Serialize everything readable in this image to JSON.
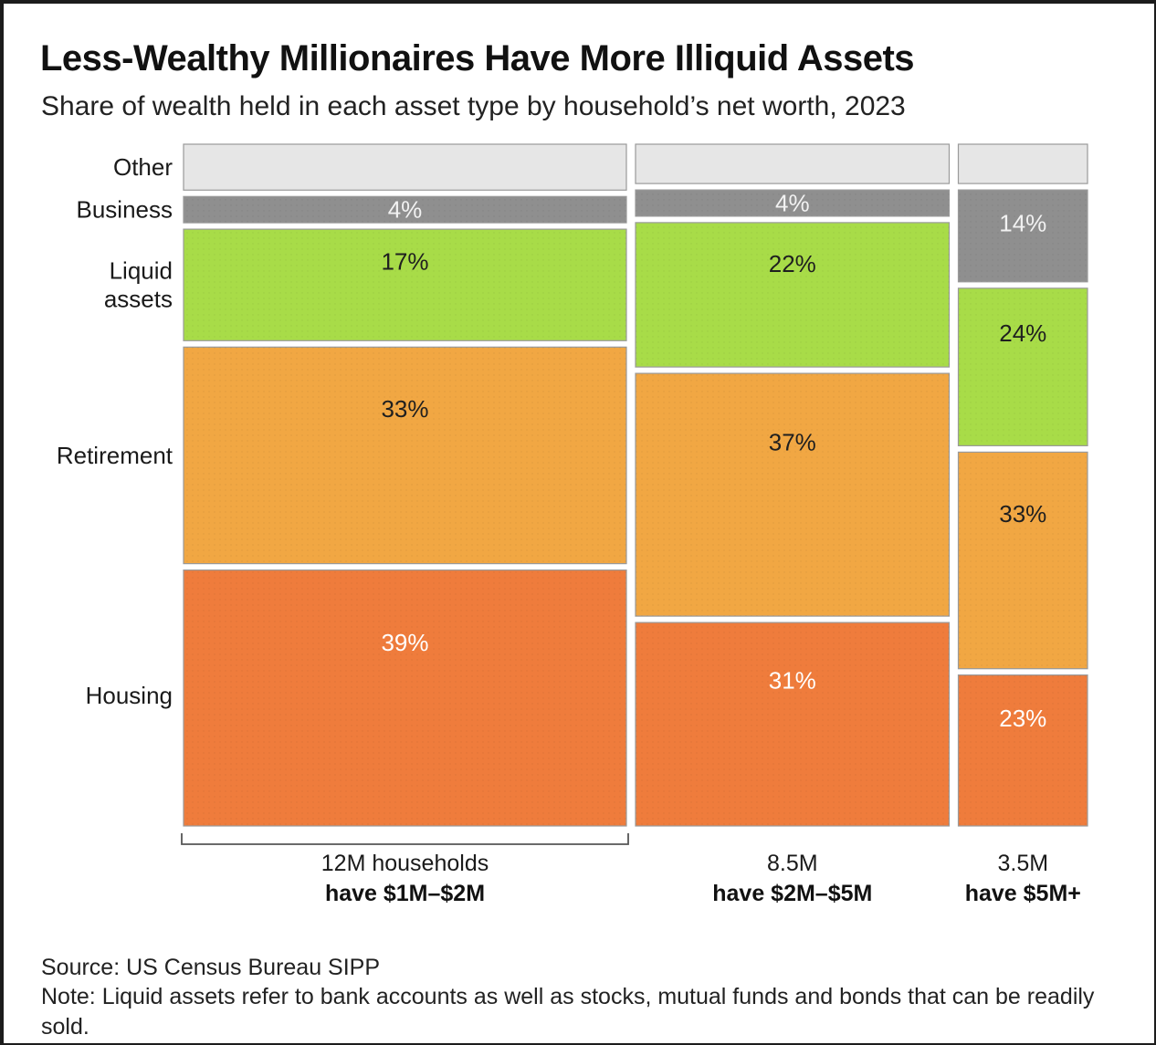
{
  "title": "Less-Wealthy Millionaires Have More Illiquid Assets",
  "subtitle": "Share of wealth held in each asset type by household’s net worth, 2023",
  "source": "Source: US Census Bureau SIPP",
  "note": "Note: Liquid assets refer to bank accounts as well as stocks, mutual funds and bonds that can be readily sold.",
  "chart_data": {
    "type": "mosaic",
    "title": "Less-Wealthy Millionaires Have More Illiquid Assets",
    "subtitle": "Share of wealth held in each asset type by household’s net worth, 2023",
    "categories_order_top_to_bottom": [
      "Other",
      "Business",
      "Liquid assets",
      "Retirement",
      "Housing"
    ],
    "row_labels": [
      {
        "key": "other",
        "lines": [
          "Other"
        ]
      },
      {
        "key": "business",
        "lines": [
          "Business"
        ]
      },
      {
        "key": "liquid",
        "lines": [
          "Liquid",
          "assets"
        ]
      },
      {
        "key": "retirement",
        "lines": [
          "Retirement"
        ]
      },
      {
        "key": "housing",
        "lines": [
          "Housing"
        ]
      }
    ],
    "colors": {
      "other": "#e6e6e6",
      "business": "#8f8f8f",
      "liquid": "#a8dc48",
      "retirement": "#f1a743",
      "housing": "#ef7c3c"
    },
    "label_colors": {
      "other": "#333333",
      "business": "#f2f2f2",
      "liquid": "#1f1f1f",
      "retirement": "#1f1f1f",
      "housing": "#ffffff"
    },
    "groups": [
      {
        "households_millions": 12,
        "count_label": "12M households",
        "range_label": "have $1M–$2M",
        "shares": {
          "other": 7,
          "business": 4,
          "liquid": 17,
          "retirement": 33,
          "housing": 39
        },
        "labels": {
          "other": "",
          "business": "4%",
          "liquid": "17%",
          "retirement": "33%",
          "housing": "39%"
        }
      },
      {
        "households_millions": 8.5,
        "count_label": "8.5M",
        "range_label": "have $2M–$5M",
        "shares": {
          "other": 6,
          "business": 4,
          "liquid": 22,
          "retirement": 37,
          "housing": 31
        },
        "labels": {
          "other": "",
          "business": "4%",
          "liquid": "22%",
          "retirement": "37%",
          "housing": "31%"
        }
      },
      {
        "households_millions": 3.5,
        "count_label": "3.5M",
        "range_label": "have $5M+",
        "shares": {
          "other": 6,
          "business": 14,
          "liquid": 24,
          "retirement": 33,
          "housing": 23
        },
        "labels": {
          "other": "",
          "business": "14%",
          "liquid": "24%",
          "retirement": "33%",
          "housing": "23%"
        }
      }
    ]
  }
}
